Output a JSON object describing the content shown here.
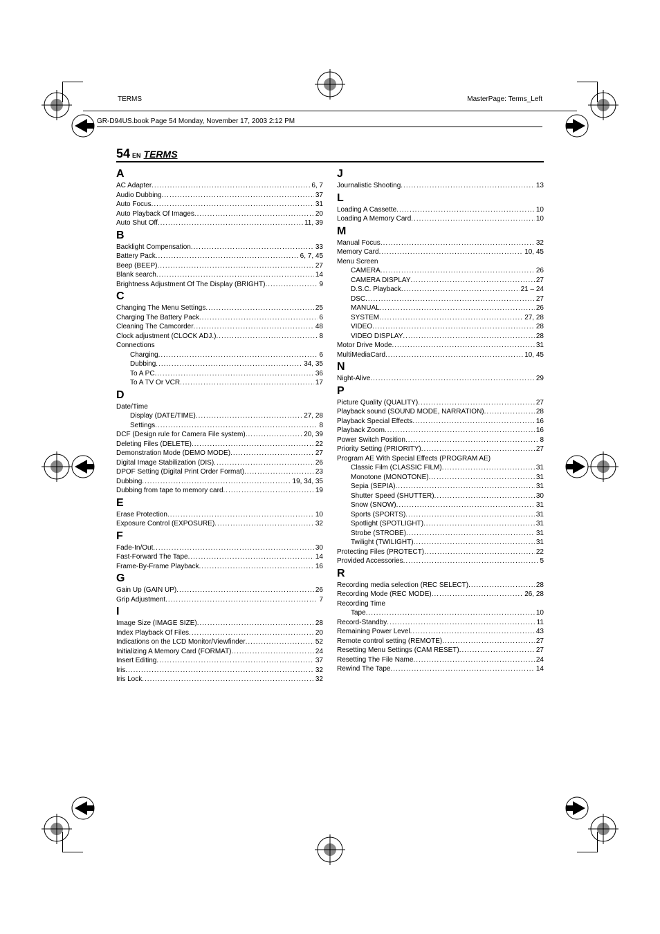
{
  "header": {
    "left": "TERMS",
    "right": "MasterPage: Terms_Left",
    "bookline": "GR-D94US.book  Page 54  Monday, November 17, 2003  2:12 PM"
  },
  "title": {
    "pageNumber": "54",
    "en": "EN",
    "section": "TERMS"
  },
  "leftCol": [
    {
      "type": "letter",
      "text": "A"
    },
    {
      "type": "entry",
      "label": "AC Adapter",
      "pg": "6, 7"
    },
    {
      "type": "entry",
      "label": "Audio Dubbing",
      "pg": "37"
    },
    {
      "type": "entry",
      "label": "Auto Focus",
      "pg": "31"
    },
    {
      "type": "entry",
      "label": "Auto Playback Of Images",
      "pg": "20"
    },
    {
      "type": "entry",
      "label": "Auto Shut Off",
      "pg": "11, 39"
    },
    {
      "type": "letter",
      "text": "B"
    },
    {
      "type": "entry",
      "label": "Backlight Compensation",
      "pg": "33"
    },
    {
      "type": "entry",
      "label": "Battery Pack",
      "pg": "6, 7, 45"
    },
    {
      "type": "entry",
      "label": "Beep (BEEP)",
      "pg": "27"
    },
    {
      "type": "entry",
      "label": "Blank search",
      "pg": "14"
    },
    {
      "type": "entry",
      "label": "Brightness Adjustment Of The Display (BRIGHT)",
      "pg": "9"
    },
    {
      "type": "letter",
      "text": "C"
    },
    {
      "type": "entry",
      "label": "Changing The Menu Settings",
      "pg": "25"
    },
    {
      "type": "entry",
      "label": "Charging The Battery Pack",
      "pg": "6"
    },
    {
      "type": "entry",
      "label": "Cleaning The Camcorder",
      "pg": "48"
    },
    {
      "type": "entry",
      "label": "Clock adjustment (CLOCK ADJ.)",
      "pg": "8"
    },
    {
      "type": "entry",
      "label": "Connections",
      "nodots": true
    },
    {
      "type": "sub",
      "label": "Charging",
      "pg": "6"
    },
    {
      "type": "sub",
      "label": "Dubbing",
      "pg": "34, 35"
    },
    {
      "type": "sub",
      "label": "To A PC",
      "pg": "36"
    },
    {
      "type": "sub",
      "label": "To A TV Or VCR",
      "pg": "17"
    },
    {
      "type": "letter",
      "text": "D"
    },
    {
      "type": "entry",
      "label": "Date/Time",
      "nodots": true
    },
    {
      "type": "sub",
      "label": "Display (DATE/TIME)",
      "pg": "27, 28"
    },
    {
      "type": "sub",
      "label": "Settings",
      "pg": "8"
    },
    {
      "type": "entry",
      "label": "DCF (Design rule for Camera File system)",
      "pg": "20, 39"
    },
    {
      "type": "entry",
      "label": "Deleting Files (DELETE)",
      "pg": "22"
    },
    {
      "type": "entry",
      "label": "Demonstration Mode (DEMO MODE)",
      "pg": "27"
    },
    {
      "type": "entry",
      "label": "Digital Image Stabilization (DIS)",
      "pg": "26"
    },
    {
      "type": "entry",
      "label": "DPOF Setting (Digital Print Order Format)",
      "pg": "23"
    },
    {
      "type": "entry",
      "label": "Dubbing",
      "pg": "19, 34, 35"
    },
    {
      "type": "entry",
      "label": "Dubbing from tape to memory card",
      "pg": "19"
    },
    {
      "type": "letter",
      "text": "E"
    },
    {
      "type": "entry",
      "label": "Erase Protection",
      "pg": "10"
    },
    {
      "type": "entry",
      "label": "Exposure Control (EXPOSURE)",
      "pg": "32"
    },
    {
      "type": "letter",
      "text": "F"
    },
    {
      "type": "entry",
      "label": "Fade-In/Out",
      "pg": "30"
    },
    {
      "type": "entry",
      "label": "Fast-Forward The Tape",
      "pg": "14"
    },
    {
      "type": "entry",
      "label": "Frame-By-Frame Playback",
      "pg": "16"
    },
    {
      "type": "letter",
      "text": "G"
    },
    {
      "type": "entry",
      "label": "Gain Up (GAIN UP)",
      "pg": "26"
    },
    {
      "type": "entry",
      "label": "Grip Adjustment",
      "pg": "7"
    },
    {
      "type": "letter",
      "text": "I"
    },
    {
      "type": "entry",
      "label": "Image Size (IMAGE SIZE)",
      "pg": "28"
    },
    {
      "type": "entry",
      "label": "Index Playback Of Files",
      "pg": "20"
    },
    {
      "type": "entry",
      "label": "Indications on the LCD Monitor/Viewfinder",
      "pg": "52"
    },
    {
      "type": "entry",
      "label": "Initializing A Memory Card (FORMAT)",
      "pg": "24"
    },
    {
      "type": "entry",
      "label": "Insert Editing",
      "pg": "37"
    },
    {
      "type": "entry",
      "label": "Iris",
      "pg": "32"
    },
    {
      "type": "entry",
      "label": "Iris Lock",
      "pg": "32"
    }
  ],
  "rightCol": [
    {
      "type": "letter",
      "text": "J"
    },
    {
      "type": "entry",
      "label": "Journalistic Shooting",
      "pg": "13"
    },
    {
      "type": "letter",
      "text": "L"
    },
    {
      "type": "entry",
      "label": "Loading A Cassette",
      "pg": "10"
    },
    {
      "type": "entry",
      "label": "Loading A Memory Card",
      "pg": "10"
    },
    {
      "type": "letter",
      "text": "M"
    },
    {
      "type": "entry",
      "label": "Manual Focus",
      "pg": "32"
    },
    {
      "type": "entry",
      "label": "Memory Card",
      "pg": "10, 45"
    },
    {
      "type": "entry",
      "label": "Menu Screen",
      "nodots": true
    },
    {
      "type": "sub",
      "label": "CAMERA",
      "pg": "26"
    },
    {
      "type": "sub",
      "label": "CAMERA DISPLAY",
      "pg": "27"
    },
    {
      "type": "sub",
      "label": "D.S.C. Playback",
      "pg": "21 – 24"
    },
    {
      "type": "sub",
      "label": "DSC",
      "pg": "27"
    },
    {
      "type": "sub",
      "label": "MANUAL",
      "pg": "26"
    },
    {
      "type": "sub",
      "label": "SYSTEM",
      "pg": "27, 28"
    },
    {
      "type": "sub",
      "label": "VIDEO",
      "pg": "28"
    },
    {
      "type": "sub",
      "label": "VIDEO DISPLAY",
      "pg": "28"
    },
    {
      "type": "entry",
      "label": "Motor Drive Mode",
      "pg": "31"
    },
    {
      "type": "entry",
      "label": "MultiMediaCard",
      "pg": "10, 45"
    },
    {
      "type": "letter",
      "text": "N"
    },
    {
      "type": "entry",
      "label": "Night-Alive",
      "pg": "29"
    },
    {
      "type": "letter",
      "text": "P"
    },
    {
      "type": "entry",
      "label": "Picture Quality (QUALITY)",
      "pg": "27"
    },
    {
      "type": "entry",
      "label": "Playback sound (SOUND MODE, NARRATION)",
      "pg": "28"
    },
    {
      "type": "entry",
      "label": "Playback Special Effects",
      "pg": "16"
    },
    {
      "type": "entry",
      "label": "Playback Zoom",
      "pg": "16"
    },
    {
      "type": "entry",
      "label": "Power Switch Position",
      "pg": "8"
    },
    {
      "type": "entry",
      "label": "Priority Setting (PRIORITY)",
      "pg": "27"
    },
    {
      "type": "entry",
      "label": "Program AE With Special Effects (PROGRAM AE)",
      "nodots": true
    },
    {
      "type": "sub",
      "label": "Classic Film (CLASSIC FILM)",
      "pg": "31"
    },
    {
      "type": "sub",
      "label": "Monotone (MONOTONE)",
      "pg": "31"
    },
    {
      "type": "sub",
      "label": "Sepia (SEPIA)",
      "pg": "31"
    },
    {
      "type": "sub",
      "label": "Shutter Speed (SHUTTER)",
      "pg": "30"
    },
    {
      "type": "sub",
      "label": "Snow (SNOW)",
      "pg": "31"
    },
    {
      "type": "sub",
      "label": "Sports (SPORTS)",
      "pg": "31"
    },
    {
      "type": "sub",
      "label": "Spotlight (SPOTLIGHT)",
      "pg": "31"
    },
    {
      "type": "sub",
      "label": "Strobe (STROBE)",
      "pg": "31"
    },
    {
      "type": "sub",
      "label": "Twilight (TWILIGHT)",
      "pg": "31"
    },
    {
      "type": "entry",
      "label": "Protecting Files (PROTECT)",
      "pg": "22"
    },
    {
      "type": "entry",
      "label": "Provided Accessories",
      "pg": "5"
    },
    {
      "type": "letter",
      "text": "R"
    },
    {
      "type": "entry",
      "label": "Recording media selection (REC SELECT)",
      "pg": "28"
    },
    {
      "type": "entry",
      "label": "Recording Mode (REC MODE)",
      "pg": "26, 28"
    },
    {
      "type": "entry",
      "label": "Recording Time",
      "nodots": true
    },
    {
      "type": "sub",
      "label": "Tape",
      "pg": "10"
    },
    {
      "type": "entry",
      "label": "Record-Standby",
      "pg": "11"
    },
    {
      "type": "entry",
      "label": "Remaining Power Level",
      "pg": "43"
    },
    {
      "type": "entry",
      "label": "Remote control setting (REMOTE)",
      "pg": "27"
    },
    {
      "type": "entry",
      "label": "Resetting Menu Settings (CAM RESET)",
      "pg": "27"
    },
    {
      "type": "entry",
      "label": "Resetting The File Name",
      "pg": "24"
    },
    {
      "type": "entry",
      "label": "Rewind The Tape",
      "pg": "14"
    }
  ]
}
